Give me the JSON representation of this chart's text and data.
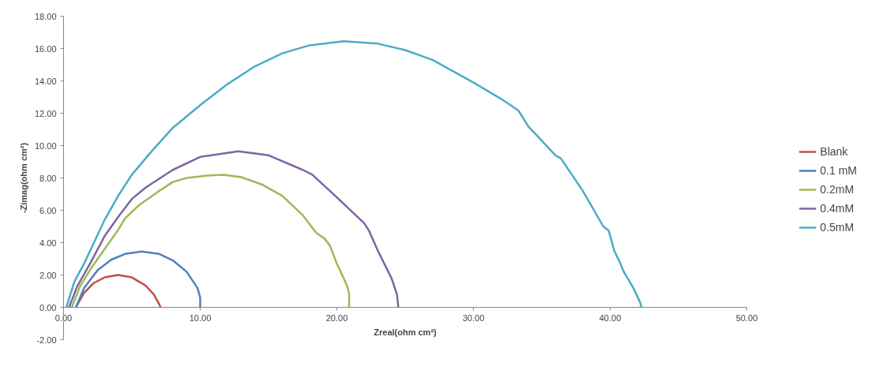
{
  "chart_data": {
    "type": "line",
    "xlabel": "Zreal(ohm cm²)",
    "ylabel": "-Zimag(ohm cm²)",
    "xlim": [
      0,
      50
    ],
    "ylim": [
      -2,
      18
    ],
    "xticks": [
      {
        "value": 0,
        "label": "0.00"
      },
      {
        "value": 10,
        "label": "10.00"
      },
      {
        "value": 20,
        "label": "20.00"
      },
      {
        "value": 30,
        "label": "30.00"
      },
      {
        "value": 40,
        "label": "40.00"
      },
      {
        "value": 50,
        "label": "50.00"
      }
    ],
    "yticks": [
      {
        "value": -2,
        "label": "-2.00"
      },
      {
        "value": 0,
        "label": "0.00"
      },
      {
        "value": 2,
        "label": "2.00"
      },
      {
        "value": 4,
        "label": "4.00"
      },
      {
        "value": 6,
        "label": "6.00"
      },
      {
        "value": 8,
        "label": "8.00"
      },
      {
        "value": 10,
        "label": "10.00"
      },
      {
        "value": 12,
        "label": "12.00"
      },
      {
        "value": 14,
        "label": "14.00"
      },
      {
        "value": 16,
        "label": "16.00"
      },
      {
        "value": 18,
        "label": "18.00"
      }
    ],
    "grid": false,
    "legend": "right",
    "marker": "none",
    "line_style": "solid",
    "series": [
      {
        "name": "Blank",
        "color": "#c0504d",
        "x": [
          0.9,
          1.5,
          2.2,
          3,
          4,
          5,
          6,
          6.6,
          7.0,
          7.1
        ],
        "values": [
          0,
          0.9,
          1.5,
          1.85,
          2.0,
          1.85,
          1.35,
          0.8,
          0.2,
          0
        ]
      },
      {
        "name": "0.1 mM",
        "color": "#4f81bd",
        "x": [
          0.9,
          1.5,
          2.5,
          3.5,
          4.5,
          5.7,
          7,
          8,
          9,
          9.8,
          10,
          10
        ],
        "values": [
          0,
          1.2,
          2.3,
          2.95,
          3.3,
          3.45,
          3.3,
          2.9,
          2.2,
          1.2,
          0.6,
          0
        ]
      },
      {
        "name": "0.2mM",
        "color": "#9bbb59",
        "x": [
          0.6,
          1.2,
          2,
          3,
          4,
          4.5,
          5.5,
          7,
          8,
          9,
          10.5,
          11.7,
          13,
          14.5,
          16,
          17.5,
          18.5,
          19.1,
          19.5,
          20,
          20.5,
          20.8,
          20.9,
          20.9
        ],
        "values": [
          0,
          1.3,
          2.4,
          3.6,
          4.8,
          5.5,
          6.3,
          7.2,
          7.75,
          8.0,
          8.15,
          8.2,
          8.05,
          7.6,
          6.9,
          5.7,
          4.6,
          4.25,
          3.8,
          2.7,
          1.8,
          1.2,
          0.8,
          0
        ]
      },
      {
        "name": "0.4mM",
        "color": "#8064a2",
        "x": [
          0.4,
          1,
          2,
          3,
          4,
          5,
          6,
          8,
          10,
          12.8,
          15,
          17.5,
          18.2,
          20,
          22,
          22.35,
          23,
          24,
          24.4,
          24.5
        ],
        "values": [
          0,
          1.3,
          2.8,
          4.4,
          5.6,
          6.7,
          7.4,
          8.5,
          9.3,
          9.65,
          9.4,
          8.5,
          8.2,
          6.8,
          5.2,
          4.74,
          3.5,
          1.8,
          0.8,
          0
        ]
      },
      {
        "name": "0.5mM",
        "color": "#4bacc6",
        "x": [
          0.2,
          0.8,
          1.5,
          2,
          3,
          4,
          5,
          6.5,
          8,
          10,
          12,
          14,
          16,
          18,
          20.5,
          23,
          25,
          27,
          30,
          32,
          33.3,
          34,
          36,
          36.4,
          38,
          39.5,
          39.9,
          40.3,
          40.7,
          41,
          41.7,
          42.2,
          42.3
        ],
        "values": [
          0,
          1.6,
          2.7,
          3.6,
          5.4,
          6.9,
          8.2,
          9.7,
          11.1,
          12.5,
          13.8,
          14.9,
          15.7,
          16.2,
          16.45,
          16.3,
          15.9,
          15.3,
          13.9,
          12.9,
          12.16,
          11.2,
          9.4,
          9.2,
          7.2,
          5.0,
          4.74,
          3.5,
          2.8,
          2.2,
          1.2,
          0.3,
          0
        ]
      }
    ]
  }
}
